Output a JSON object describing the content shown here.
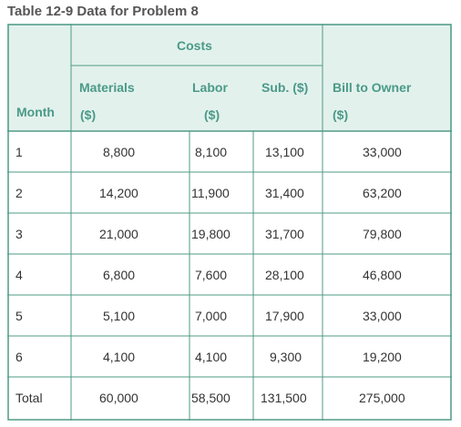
{
  "title": "Table 12-9 Data for Problem 8",
  "header": {
    "costs": "Costs",
    "month": "Month",
    "materials": "Materials",
    "materials_unit": "($)",
    "labor": "Labor",
    "labor_unit": "($)",
    "sub": "Sub. ($)",
    "bill": "Bill to Owner",
    "bill_unit": "($)"
  },
  "rows": [
    {
      "month": "1",
      "materials": "8,800",
      "labor": "8,100",
      "sub": "13,100",
      "bill": "33,000"
    },
    {
      "month": "2",
      "materials": "14,200",
      "labor": "11,900",
      "sub": "31,400",
      "bill": "63,200"
    },
    {
      "month": "3",
      "materials": "21,000",
      "labor": "19,800",
      "sub": "31,700",
      "bill": "79,800"
    },
    {
      "month": "4",
      "materials": "6,800",
      "labor": "7,600",
      "sub": "28,100",
      "bill": "46,800"
    },
    {
      "month": "5",
      "materials": "5,100",
      "labor": "7,000",
      "sub": "17,900",
      "bill": "33,000"
    },
    {
      "month": "6",
      "materials": "4,100",
      "labor": "4,100",
      "sub": "9,300",
      "bill": "19,200"
    },
    {
      "month": "Total",
      "materials": "60,000",
      "labor": "58,500",
      "sub": "131,500",
      "bill": "275,000"
    }
  ],
  "colors": {
    "header_bg": "#e3f1ec",
    "grid": "#4f9b86",
    "header_text": "#4a9a88",
    "title_text": "#555555",
    "cell_text": "#333333"
  }
}
